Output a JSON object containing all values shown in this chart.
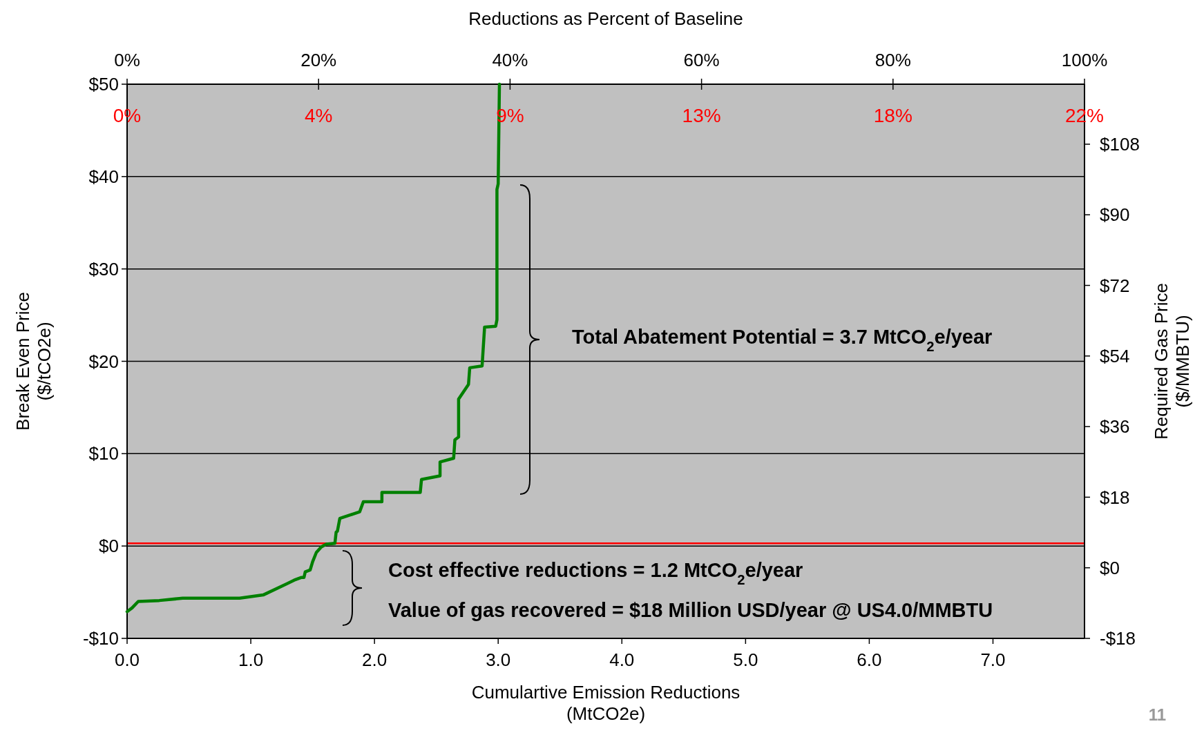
{
  "chart_data": {
    "type": "line",
    "xlabel": "Cumulartive Emission Reductions\n(MtCO2e)",
    "ylabel": "Break Even Price\n($/tCO2e)",
    "y2label": "Required Gas Price\n($/MMBTU)",
    "x2label": "Reductions as Percent of Baseline",
    "xlim": [
      0,
      7.74
    ],
    "xticks": [
      {
        "value": 0,
        "label": "0.0"
      },
      {
        "value": 1,
        "label": "1.0"
      },
      {
        "value": 2,
        "label": "2.0"
      },
      {
        "value": 3,
        "label": "3.0"
      },
      {
        "value": 4,
        "label": "4.0"
      },
      {
        "value": 5,
        "label": "5.0"
      },
      {
        "value": 6,
        "label": "6.0"
      },
      {
        "value": 7,
        "label": "7.0"
      }
    ],
    "ylim": [
      -10,
      50
    ],
    "yticks": [
      {
        "value": -10,
        "label": "-$10"
      },
      {
        "value": 0,
        "label": "$0"
      },
      {
        "value": 10,
        "label": "$10"
      },
      {
        "value": 20,
        "label": "$20"
      },
      {
        "value": 30,
        "label": "$30"
      },
      {
        "value": 40,
        "label": "$40"
      },
      {
        "value": 50,
        "label": "$50"
      }
    ],
    "y2lim": [
      -18,
      123.3
    ],
    "y2ticks": [
      {
        "value": -18,
        "label": "-$18"
      },
      {
        "value": 0,
        "label": "$0"
      },
      {
        "value": 18,
        "label": "$18"
      },
      {
        "value": 36,
        "label": "$36"
      },
      {
        "value": 54,
        "label": "$54"
      },
      {
        "value": 72,
        "label": "$72"
      },
      {
        "value": 90,
        "label": "$90"
      },
      {
        "value": 108,
        "label": "$108"
      }
    ],
    "x2lim": [
      0,
      100
    ],
    "x2ticks": [
      {
        "value": 0,
        "label": "0%"
      },
      {
        "value": 20,
        "label": "20%"
      },
      {
        "value": 40,
        "label": "40%"
      },
      {
        "value": 60,
        "label": "60%"
      },
      {
        "value": 80,
        "label": "80%"
      },
      {
        "value": 100,
        "label": "100%"
      }
    ],
    "grid": "y",
    "marker": "none",
    "line_style": "solid",
    "ref_lines": [
      {
        "axis": "y",
        "value": 0.3,
        "color": "#ff0000"
      }
    ],
    "annotations": [
      "Total Abatement Potential = 3.7 MtCO$_{2}$e/year",
      "Cost effective reductions = 1.2 MtCO$_{2}$e/year",
      "Value of gas recovered = $18 Million USD/year @ US4.0/MMBTU",
      "11",
      "0%",
      "4%",
      "9%",
      "13%",
      "18%",
      "22%"
    ],
    "series": [
      {
        "color": "#008000",
        "x": [
          0,
          0.04,
          0.09,
          0.26,
          0.45,
          0.91,
          1.1,
          1.29,
          1.35,
          1.41,
          1.43,
          1.44,
          1.48,
          1.5,
          1.53,
          1.57,
          1.61,
          1.68,
          1.69,
          1.7,
          1.72,
          1.88,
          1.91,
          2.06,
          2.06,
          2.37,
          2.38,
          2.53,
          2.53,
          2.64,
          2.65,
          2.68,
          2.68,
          2.76,
          2.77,
          2.87,
          2.89,
          2.98,
          2.99,
          2.99,
          3.0,
          3.01
        ],
        "values": [
          -7.1,
          -6.7,
          -6.0,
          -5.9,
          -5.65,
          -5.65,
          -5.3,
          -4.1,
          -3.7,
          -3.4,
          -3.4,
          -2.8,
          -2.6,
          -1.7,
          -0.7,
          -0.1,
          0.2,
          0.3,
          1.5,
          1.6,
          3.0,
          3.7,
          4.8,
          4.8,
          5.8,
          5.8,
          7.2,
          7.6,
          9.1,
          9.5,
          11.5,
          11.8,
          15.9,
          17.5,
          19.3,
          19.5,
          23.7,
          23.8,
          24.5,
          38.6,
          39.2,
          50
        ]
      }
    ]
  }
}
